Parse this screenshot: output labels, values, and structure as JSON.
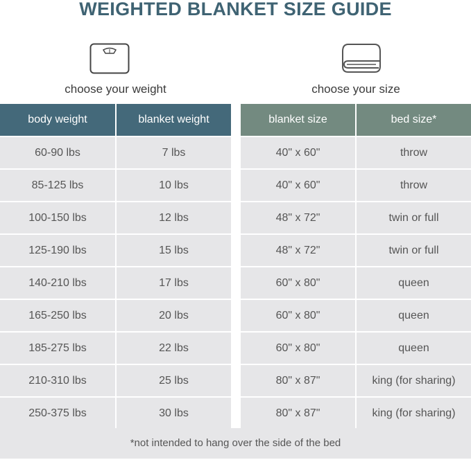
{
  "title": "WEIGHTED BLANKET SIZE GUIDE",
  "left": {
    "caption": "choose your weight",
    "icon": "scale-icon",
    "headers": [
      "body weight",
      "blanket weight"
    ],
    "rows": [
      [
        "60-90 lbs",
        "7 lbs"
      ],
      [
        "85-125 lbs",
        "10 lbs"
      ],
      [
        "100-150 lbs",
        "12 lbs"
      ],
      [
        "125-190 lbs",
        "15 lbs"
      ],
      [
        "140-210 lbs",
        "17 lbs"
      ],
      [
        "165-250 lbs",
        "20 lbs"
      ],
      [
        "185-275 lbs",
        "22 lbs"
      ],
      [
        "210-310 lbs",
        "25 lbs"
      ],
      [
        "250-375 lbs",
        "30 lbs"
      ]
    ]
  },
  "right": {
    "caption": "choose your size",
    "icon": "folded-blanket-icon",
    "headers": [
      "blanket size",
      "bed size*"
    ],
    "rows": [
      [
        "40\" x 60\"",
        "throw"
      ],
      [
        "40\" x 60\"",
        "throw"
      ],
      [
        "48\" x 72\"",
        "twin or full"
      ],
      [
        "48\" x 72\"",
        "twin or full"
      ],
      [
        "60\" x 80\"",
        "queen"
      ],
      [
        "60\" x 80\"",
        "queen"
      ],
      [
        "60\" x 80\"",
        "queen"
      ],
      [
        "80\" x 87\"",
        "king (for sharing)"
      ],
      [
        "80\" x 87\"",
        "king (for sharing)"
      ]
    ]
  },
  "footnote": "*not intended to hang over the side of the bed",
  "colors": {
    "title": "#3f6373",
    "left_header": "#44697a",
    "right_header": "#738a80",
    "row_bg": "#e6e6e8"
  }
}
